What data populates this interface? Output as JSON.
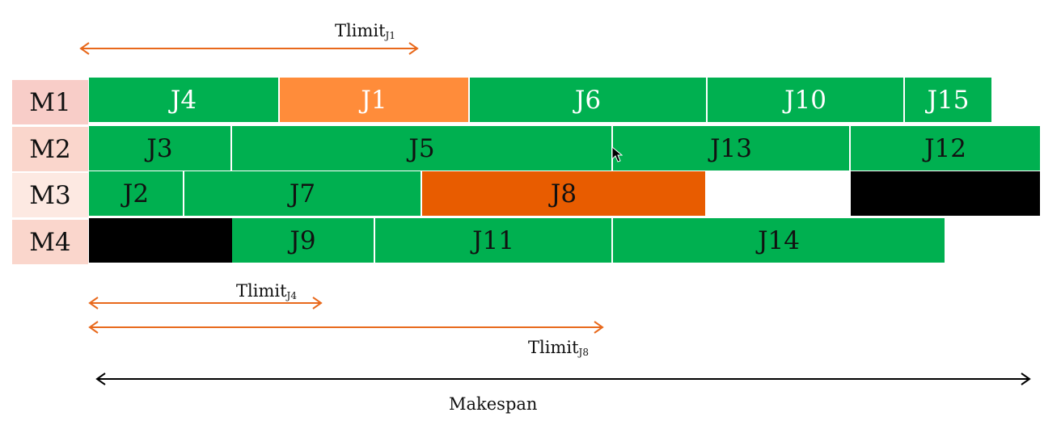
{
  "machines": [
    "M1",
    "M2",
    "M3",
    "M4"
  ],
  "colors": {
    "job": "#00b050",
    "limited_job_light": "#ff8c3a",
    "limited_job_dark": "#e85c00",
    "blocked": "#000000",
    "label_bg_m1": "#f8cdc8",
    "label_bg_m2": "#fad6cc",
    "label_bg_m3": "#fde9e2",
    "label_bg_m4": "#fad6cc",
    "arrow_limit": "#e8691c",
    "arrow_makespan": "#000000"
  },
  "rows": [
    {
      "machine": "M1",
      "jobs": [
        {
          "label": "J4",
          "kind": "job",
          "text": "light"
        },
        {
          "label": "J1",
          "kind": "limited_light",
          "text": "light"
        },
        {
          "label": "J6",
          "kind": "job",
          "text": "light"
        },
        {
          "label": "J10",
          "kind": "job",
          "text": "light"
        },
        {
          "label": "J15",
          "kind": "job",
          "text": "light"
        }
      ]
    },
    {
      "machine": "M2",
      "jobs": [
        {
          "label": "J3",
          "kind": "job"
        },
        {
          "label": "J5",
          "kind": "job"
        },
        {
          "label": "J13",
          "kind": "job"
        },
        {
          "label": "J12",
          "kind": "job"
        }
      ]
    },
    {
      "machine": "M3",
      "jobs": [
        {
          "label": "J2",
          "kind": "job"
        },
        {
          "label": "J7",
          "kind": "job"
        },
        {
          "label": "J8",
          "kind": "limited_dark"
        },
        {
          "label": "",
          "kind": "idle"
        },
        {
          "label": "",
          "kind": "blocked"
        }
      ]
    },
    {
      "machine": "M4",
      "jobs": [
        {
          "label": "",
          "kind": "blocked"
        },
        {
          "label": "J9",
          "kind": "job"
        },
        {
          "label": "J11",
          "kind": "job"
        },
        {
          "label": "J14",
          "kind": "job"
        }
      ]
    }
  ],
  "annotations": {
    "tlimit_j1": {
      "text": "Tlimit",
      "sub": "J1"
    },
    "tlimit_j4": {
      "text": "Tlimit",
      "sub": "J4"
    },
    "tlimit_j8": {
      "text": "Tlimit",
      "sub": "J8"
    },
    "makespan": "Makespan"
  }
}
